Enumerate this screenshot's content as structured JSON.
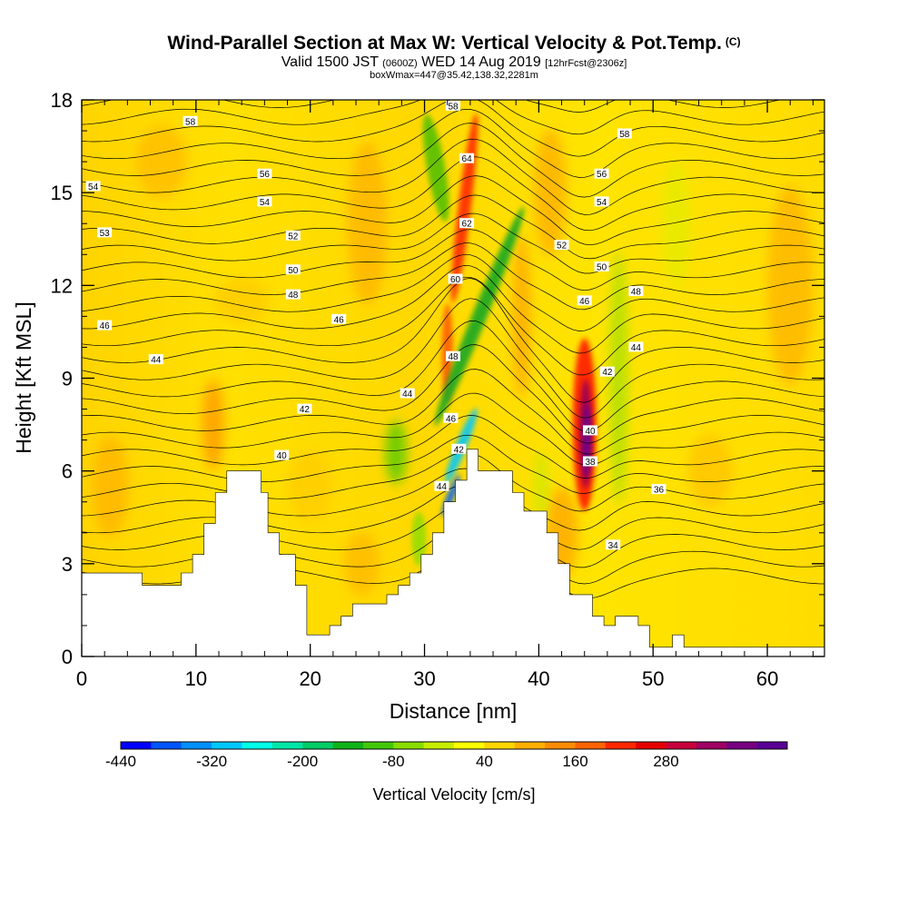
{
  "chart_data": {
    "type": "heatmap",
    "title": "Wind-Parallel Section at Max W: Vertical Velocity & Pot.Temp.",
    "copyright_mark": "(C)",
    "subtitle": {
      "valid_label": "Valid 1500 JST",
      "utc_time": "(0600Z)",
      "date": "WED 14 Aug 2019",
      "forecast": "[12hrFcst@2306z]"
    },
    "box_info": "boxWmax=447@35.42,138.32,2281m",
    "xlabel": "Distance [nm]",
    "ylabel": "Height [Kft MSL]",
    "xlim": [
      0,
      65
    ],
    "ylim": [
      0,
      18
    ],
    "x_ticks": [
      "0",
      "10",
      "20",
      "30",
      "40",
      "50",
      "60"
    ],
    "y_ticks": [
      "0",
      "3",
      "6",
      "9",
      "12",
      "15",
      "18"
    ],
    "colorbar": {
      "label": "Vertical Velocity [cm/s]",
      "min": -440,
      "step": 40,
      "tick_labels": [
        "-440",
        "-320",
        "-200",
        "-80",
        "40",
        "160",
        "280"
      ],
      "colors": [
        "#0000ff",
        "#0055ff",
        "#0090ff",
        "#00c8ff",
        "#00ffe8",
        "#00e6a8",
        "#00cc66",
        "#11b31a",
        "#44c80a",
        "#88dd00",
        "#c8ee00",
        "#ffff00",
        "#ffd700",
        "#ffb000",
        "#ff8c00",
        "#ff6400",
        "#ff2800",
        "#e60000",
        "#c8003c",
        "#a00064",
        "#780082",
        "#5a0096"
      ]
    },
    "terrain_profile": {
      "x": [
        0,
        5.3,
        5.3,
        8.7,
        8.7,
        9.7,
        9.7,
        10.7,
        10.7,
        11.7,
        11.7,
        12.7,
        12.7,
        15.7,
        15.7,
        16.3,
        16.3,
        17.3,
        17.3,
        18.7,
        18.7,
        19.7,
        19.7,
        21.7,
        21.7,
        22.7,
        22.7,
        23.7,
        23.7,
        26.7,
        26.7,
        27.7,
        27.7,
        28.7,
        28.7,
        29.7,
        29.7,
        30.7,
        30.7,
        31.7,
        31.7,
        32.7,
        32.7,
        33.7,
        33.7,
        34.7,
        34.7,
        37.7,
        37.7,
        38.7,
        38.7,
        40.7,
        40.7,
        41.7,
        41.7,
        42.7,
        42.7,
        44.7,
        44.7,
        45.7,
        45.7,
        46.7,
        46.7,
        48.7,
        48.7,
        49.7,
        49.7,
        51.7,
        51.7,
        52.7,
        52.7,
        65
      ],
      "y": [
        2.7,
        2.7,
        2.3,
        2.3,
        2.7,
        2.7,
        3.3,
        3.3,
        4.3,
        4.3,
        5.3,
        5.3,
        6.0,
        6.0,
        5.3,
        5.3,
        4.0,
        4.0,
        3.3,
        3.3,
        2.3,
        2.3,
        0.7,
        0.7,
        1.0,
        1.0,
        1.3,
        1.3,
        1.7,
        1.7,
        2.0,
        2.0,
        2.3,
        2.3,
        2.7,
        2.7,
        3.3,
        3.3,
        4.0,
        4.0,
        5.0,
        5.0,
        5.7,
        5.7,
        6.7,
        6.7,
        6.0,
        6.0,
        5.3,
        5.3,
        4.7,
        4.7,
        4.0,
        4.0,
        3.0,
        3.0,
        2.0,
        2.0,
        1.3,
        1.3,
        1.0,
        1.0,
        1.3,
        1.3,
        1.0,
        1.0,
        0.3,
        0.3,
        0.7,
        0.7,
        0.3,
        0.3
      ]
    },
    "contour_labels": [
      {
        "text": "58",
        "x": 9.5,
        "y": 17.3
      },
      {
        "text": "58",
        "x": 32.5,
        "y": 17.8
      },
      {
        "text": "58",
        "x": 47.5,
        "y": 16.9
      },
      {
        "text": "56",
        "x": 16.0,
        "y": 15.6
      },
      {
        "text": "56",
        "x": 45.5,
        "y": 15.6
      },
      {
        "text": "54",
        "x": 1.0,
        "y": 15.2
      },
      {
        "text": "54",
        "x": 16.0,
        "y": 14.7
      },
      {
        "text": "54",
        "x": 45.5,
        "y": 14.7
      },
      {
        "text": "53",
        "x": 2.0,
        "y": 13.7
      },
      {
        "text": "52",
        "x": 18.5,
        "y": 13.6
      },
      {
        "text": "52",
        "x": 42.0,
        "y": 13.3
      },
      {
        "text": "50",
        "x": 18.5,
        "y": 12.5
      },
      {
        "text": "50",
        "x": 45.5,
        "y": 12.6
      },
      {
        "text": "48",
        "x": 18.5,
        "y": 11.7
      },
      {
        "text": "48",
        "x": 48.5,
        "y": 11.8
      },
      {
        "text": "46",
        "x": 2.0,
        "y": 10.7
      },
      {
        "text": "46",
        "x": 22.5,
        "y": 10.9
      },
      {
        "text": "46",
        "x": 44.0,
        "y": 11.5
      },
      {
        "text": "44",
        "x": 6.5,
        "y": 9.6
      },
      {
        "text": "44",
        "x": 28.5,
        "y": 8.5
      },
      {
        "text": "44",
        "x": 48.5,
        "y": 10.0
      },
      {
        "text": "42",
        "x": 19.5,
        "y": 8.0
      },
      {
        "text": "42",
        "x": 46.0,
        "y": 9.2
      },
      {
        "text": "40",
        "x": 17.5,
        "y": 6.5
      },
      {
        "text": "40",
        "x": 44.5,
        "y": 7.3
      },
      {
        "text": "38",
        "x": 44.5,
        "y": 6.3
      },
      {
        "text": "36",
        "x": 50.5,
        "y": 5.4
      },
      {
        "text": "34",
        "x": 46.5,
        "y": 3.6
      },
      {
        "text": "64",
        "x": 33.7,
        "y": 16.1
      },
      {
        "text": "62",
        "x": 33.7,
        "y": 14.0
      },
      {
        "text": "60",
        "x": 32.7,
        "y": 12.2
      },
      {
        "text": "48",
        "x": 32.5,
        "y": 9.7
      },
      {
        "text": "46",
        "x": 32.3,
        "y": 7.7
      },
      {
        "text": "42",
        "x": 33.0,
        "y": 6.7
      },
      {
        "text": "44",
        "x": 31.5,
        "y": 5.5
      }
    ]
  }
}
